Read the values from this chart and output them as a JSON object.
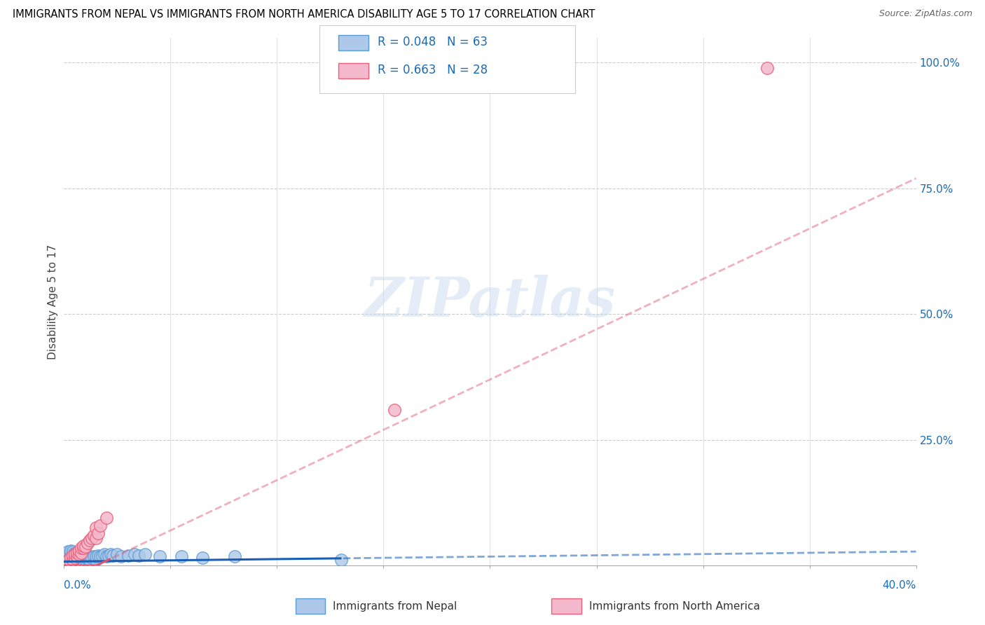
{
  "title": "IMMIGRANTS FROM NEPAL VS IMMIGRANTS FROM NORTH AMERICA DISABILITY AGE 5 TO 17 CORRELATION CHART",
  "source": "Source: ZipAtlas.com",
  "ylabel": "Disability Age 5 to 17",
  "nepal_R": "0.048",
  "nepal_N": "63",
  "northam_R": "0.663",
  "northam_N": "28",
  "nepal_color": "#adc8e8",
  "nepal_edge_color": "#5b9bd5",
  "northam_color": "#f4b8cc",
  "northam_edge_color": "#e8607a",
  "nepal_line_color": "#1a5fb5",
  "northam_line_color": "#e05070",
  "legend_color": "#1a6bb5",
  "watermark_text": "ZIPatlas",
  "xlim": [
    0.0,
    0.4
  ],
  "ylim": [
    0.0,
    1.05
  ],
  "nepal_line_intercept": 0.008,
  "nepal_line_slope": 0.05,
  "northam_line_intercept": -0.03,
  "northam_line_slope": 2.0,
  "nepal_x": [
    0.001,
    0.001,
    0.001,
    0.002,
    0.002,
    0.002,
    0.002,
    0.002,
    0.003,
    0.003,
    0.003,
    0.003,
    0.003,
    0.003,
    0.004,
    0.004,
    0.004,
    0.004,
    0.004,
    0.005,
    0.005,
    0.005,
    0.005,
    0.006,
    0.006,
    0.006,
    0.007,
    0.007,
    0.007,
    0.008,
    0.008,
    0.009,
    0.009,
    0.01,
    0.01,
    0.01,
    0.011,
    0.011,
    0.012,
    0.012,
    0.013,
    0.014,
    0.015,
    0.015,
    0.016,
    0.017,
    0.018,
    0.019,
    0.02,
    0.021,
    0.022,
    0.023,
    0.025,
    0.027,
    0.03,
    0.033,
    0.035,
    0.038,
    0.045,
    0.055,
    0.065,
    0.08,
    0.13
  ],
  "nepal_y": [
    0.01,
    0.015,
    0.025,
    0.008,
    0.012,
    0.018,
    0.022,
    0.028,
    0.01,
    0.015,
    0.018,
    0.022,
    0.025,
    0.03,
    0.008,
    0.012,
    0.018,
    0.022,
    0.028,
    0.008,
    0.012,
    0.018,
    0.025,
    0.008,
    0.015,
    0.022,
    0.01,
    0.015,
    0.022,
    0.008,
    0.015,
    0.01,
    0.018,
    0.012,
    0.015,
    0.02,
    0.015,
    0.02,
    0.012,
    0.018,
    0.015,
    0.018,
    0.012,
    0.018,
    0.02,
    0.018,
    0.02,
    0.022,
    0.018,
    0.02,
    0.022,
    0.02,
    0.022,
    0.018,
    0.02,
    0.022,
    0.02,
    0.022,
    0.018,
    0.018,
    0.015,
    0.018,
    0.012
  ],
  "northam_x": [
    0.001,
    0.002,
    0.003,
    0.003,
    0.004,
    0.004,
    0.005,
    0.005,
    0.006,
    0.006,
    0.007,
    0.007,
    0.008,
    0.008,
    0.009,
    0.009,
    0.01,
    0.011,
    0.012,
    0.013,
    0.014,
    0.015,
    0.015,
    0.016,
    0.017,
    0.02,
    0.155,
    0.33
  ],
  "northam_y": [
    0.008,
    0.01,
    0.008,
    0.015,
    0.012,
    0.02,
    0.015,
    0.022,
    0.018,
    0.025,
    0.022,
    0.03,
    0.025,
    0.035,
    0.035,
    0.04,
    0.038,
    0.045,
    0.05,
    0.055,
    0.06,
    0.055,
    0.075,
    0.065,
    0.08,
    0.095,
    0.31,
    0.99
  ],
  "bottom_legend_items": [
    {
      "label": "Immigrants from Nepal",
      "color": "#adc8e8",
      "edge": "#5b9bd5"
    },
    {
      "label": "Immigrants from North America",
      "color": "#f4b8cc",
      "edge": "#e8607a"
    }
  ]
}
